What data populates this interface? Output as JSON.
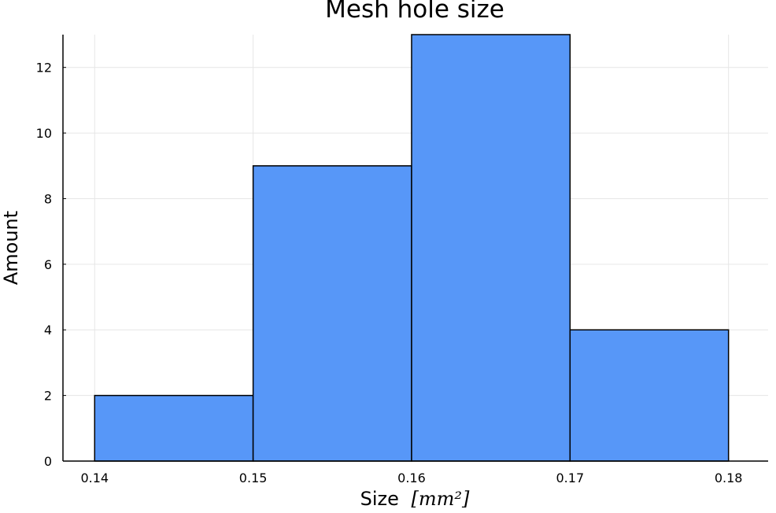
{
  "chart_data": {
    "type": "bar",
    "title": "Mesh hole size",
    "xlabel": "Size",
    "xlabel_unit": "[mm²]",
    "ylabel": "Amount",
    "bins": [
      {
        "x_start": 0.14,
        "x_end": 0.15,
        "value": 2
      },
      {
        "x_start": 0.15,
        "x_end": 0.16,
        "value": 9
      },
      {
        "x_start": 0.16,
        "x_end": 0.17,
        "value": 13
      },
      {
        "x_start": 0.17,
        "x_end": 0.18,
        "value": 4
      }
    ],
    "xlim": [
      0.138,
      0.1825
    ],
    "ylim": [
      0,
      13
    ],
    "xticks": [
      "0.14",
      "0.15",
      "0.16",
      "0.17",
      "0.18"
    ],
    "xtick_values": [
      0.14,
      0.15,
      0.16,
      0.17,
      0.18
    ],
    "yticks": [
      "0",
      "2",
      "4",
      "6",
      "8",
      "10",
      "12"
    ],
    "ytick_values": [
      0,
      2,
      4,
      6,
      8,
      10,
      12
    ],
    "grid": true,
    "legend": "none",
    "colors": {
      "bar_fill": "#5797f8",
      "bar_edge": "#000000",
      "grid": "#e6e6e6",
      "axis": "#000000"
    }
  }
}
